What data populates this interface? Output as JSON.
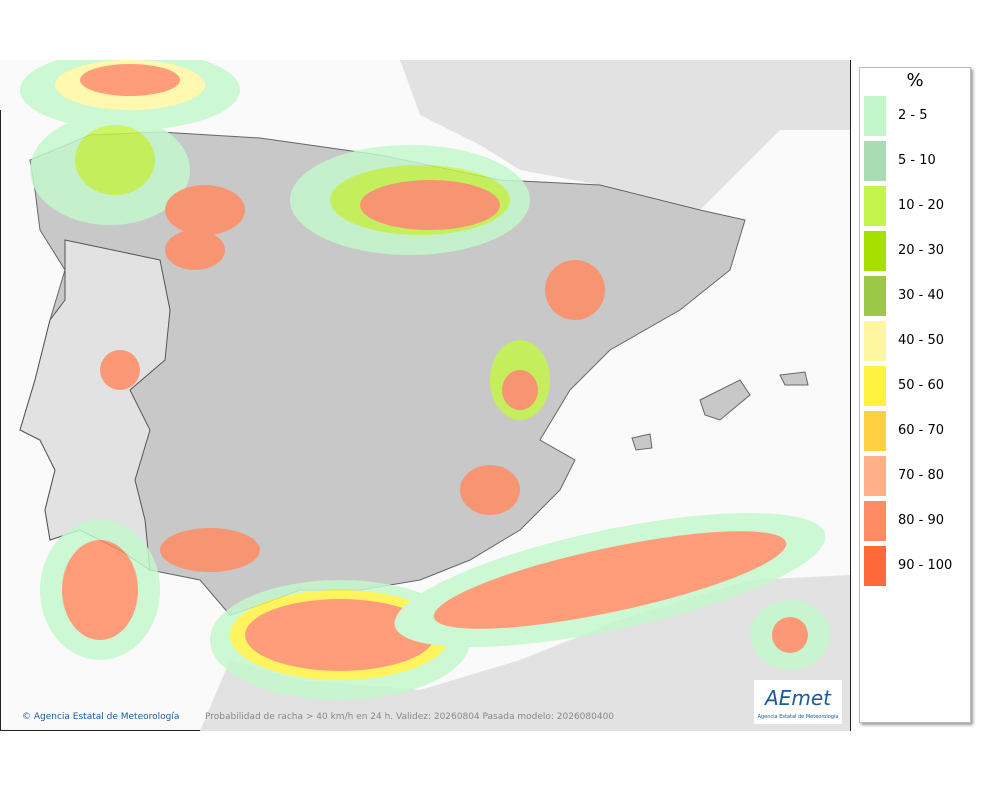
{
  "legend": {
    "title": "%",
    "items": [
      {
        "label": "2 - 5",
        "color": "#c3f7cb"
      },
      {
        "label": "5 - 10",
        "color": "#a9dcb2"
      },
      {
        "label": "10 - 20",
        "color": "#c4f54a"
      },
      {
        "label": "20 - 30",
        "color": "#a6e000"
      },
      {
        "label": "30 - 40",
        "color": "#9bc846"
      },
      {
        "label": "40 - 50",
        "color": "#fff7a0"
      },
      {
        "label": "50 - 60",
        "color": "#fff240"
      },
      {
        "label": "60 - 70",
        "color": "#ffd040"
      },
      {
        "label": "70 - 80",
        "color": "#ffb088"
      },
      {
        "label": "80 - 90",
        "color": "#ff8c64"
      },
      {
        "label": "90 - 100",
        "color": "#ff6838"
      }
    ]
  },
  "footer": {
    "credit": "Agencia Estatal de Meteorología",
    "caption": "Probabilidad de racha > 40 km/h en 24 h. Validez: 20260804 Pasada modelo: 2026080400"
  },
  "logo": {
    "name": "AEmet",
    "subtitle": "Agencia Estatal de Meteorología"
  }
}
